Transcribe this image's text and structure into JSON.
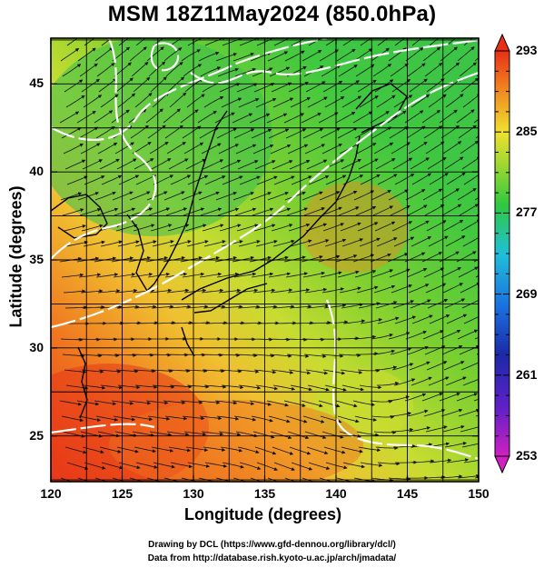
{
  "title": "MSM 18Z11May2024 (850.0hPa)",
  "axes": {
    "xlabel": "Longitude (degrees)",
    "ylabel": "Latitude  (degrees)",
    "xticks": [
      "120",
      "125",
      "130",
      "135",
      "140",
      "145",
      "150"
    ],
    "yticks": [
      "25",
      "30",
      "35",
      "40",
      "45"
    ],
    "xlim": [
      120,
      150
    ],
    "ylim": [
      22.4,
      47.6
    ]
  },
  "colorbar": {
    "ticks": [
      "293",
      "285",
      "277",
      "269",
      "261",
      "253"
    ],
    "range": [
      253,
      293
    ]
  },
  "colors": {
    "red": "#e8401c",
    "orange": "#f08a24",
    "yellow": "#e8e030",
    "yellowgreen": "#a8d830",
    "green": "#48c830",
    "cyan": "#30c8c8",
    "blue": "#2060e0",
    "navy": "#1a2aa0",
    "magenta": "#e040c0"
  },
  "credits": {
    "line1": "Drawing by DCL (https://www.gfd-dennou.org/library/dcl/)",
    "line2": "Data from http://database.rish.kyoto-u.ac.jp/arch/jmadata/"
  }
}
